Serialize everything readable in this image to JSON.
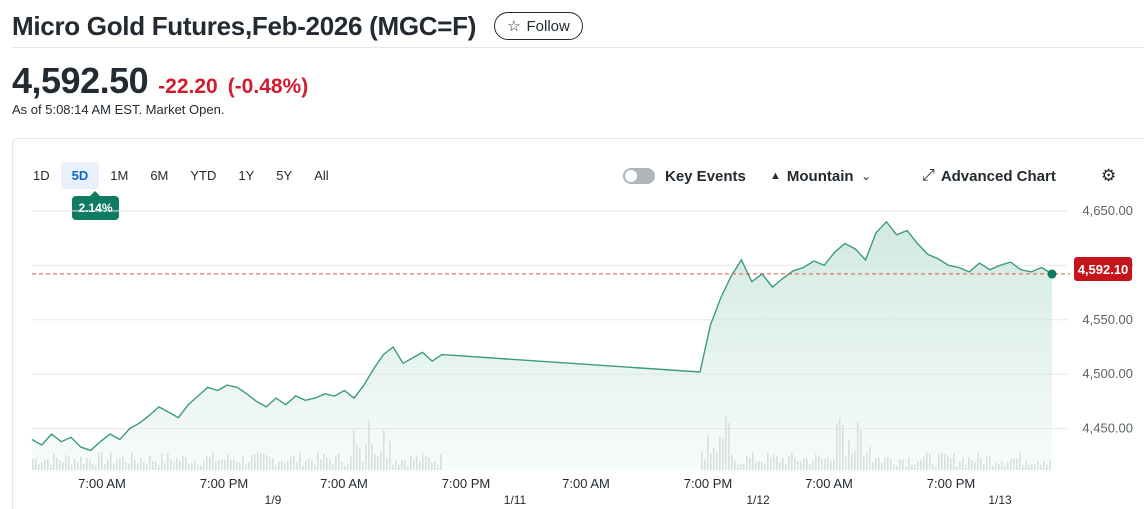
{
  "header": {
    "title": "Micro Gold Futures,Feb-2026 (MGC=F)",
    "follow_label": "Follow",
    "follow_icon": "star-icon"
  },
  "quote": {
    "price": "4,592.50",
    "change": "-22.20",
    "change_pct": "(-0.48%)",
    "as_of": "As of 5:08:14 AM EST. Market Open.",
    "change_color": "#d01c2c"
  },
  "range_tabs": [
    "1D",
    "5D",
    "1M",
    "6M",
    "YTD",
    "1Y",
    "5Y",
    "All"
  ],
  "selected_range": "5D",
  "range_change_badge": "2.14%",
  "toolbar": {
    "key_events_label": "Key Events",
    "key_events_on": false,
    "chart_type_label": "Mountain",
    "chart_type_icon": "mountain-icon",
    "advanced_label": "Advanced Chart",
    "advanced_icon": "expand-icon",
    "settings_icon": "gear-icon"
  },
  "current_price_label": "4,592.10",
  "colors": {
    "line": "#3d9a83",
    "fill": "#cfe8df",
    "badge": "#0f7b62",
    "price_tag": "#c5151c",
    "active_tab": "#0f69c9"
  },
  "chart_data": {
    "type": "area",
    "y_ticks": [
      "4,650.00",
      "4,600.00",
      "4,550.00",
      "4,500.00",
      "4,450.00"
    ],
    "y_tick_values": [
      4650,
      4600,
      4550,
      4500,
      4450
    ],
    "ylim": [
      4412,
      4660
    ],
    "x_tick_labels": [
      "7:00 AM",
      "7:00 PM",
      "7:00 AM",
      "7:00 PM",
      "7:00 AM",
      "7:00 PM",
      "7:00 AM",
      "7:00 PM"
    ],
    "date_labels": [
      "1/9",
      "1/11",
      "1/12",
      "1/13"
    ],
    "reference_line": 4592.1,
    "grid": true,
    "series": [
      {
        "values": [
          4440,
          4435,
          4445,
          4438,
          4442,
          4433,
          4430,
          4438,
          4445,
          4440,
          4450,
          4455,
          4462,
          4470,
          4465,
          4460,
          4472,
          4480,
          4488,
          4485,
          4490,
          4488,
          4482,
          4475,
          4470,
          4478,
          4472,
          4480,
          4476,
          4478,
          4482,
          4480,
          4485,
          4478,
          4490,
          4505,
          4518,
          4525,
          4510,
          4515,
          4520,
          4512,
          4518,
          4502,
          4545,
          4570,
          4590,
          4605,
          4585,
          4592,
          4580,
          4588,
          4595,
          4598,
          4604,
          4600,
          4612,
          4620,
          4615,
          4605,
          4630,
          4640,
          4628,
          4632,
          4620,
          4610,
          4606,
          4600,
          4598,
          4594,
          4602,
          4596,
          4600,
          4603,
          4596,
          4594,
          4598,
          4592
        ]
      }
    ]
  }
}
